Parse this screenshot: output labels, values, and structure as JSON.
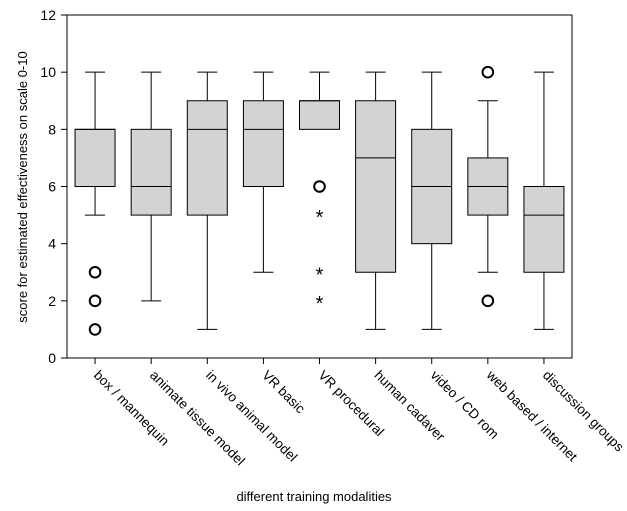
{
  "chart_data": {
    "type": "boxplot",
    "xlabel": "different training modalities",
    "ylabel": "score for estimated effectiveness on scale 0-10",
    "ylim": [
      0,
      12
    ],
    "yticks": [
      "0",
      "2",
      "4",
      "6",
      "8",
      "10",
      "12"
    ],
    "box_fill": "#d3d3d3",
    "categories": [
      {
        "label": "box / mannequin",
        "min": 5,
        "q1": 6,
        "median": 8,
        "q3": 8,
        "max": 10,
        "outliers": [
          3,
          2,
          1
        ],
        "extremes": []
      },
      {
        "label": "animate tissue model",
        "min": 2,
        "q1": 5,
        "median": 6,
        "q3": 8,
        "max": 10,
        "outliers": [],
        "extremes": []
      },
      {
        "label": "in vivo animal model",
        "min": 1,
        "q1": 5,
        "median": 8,
        "q3": 9,
        "max": 10,
        "outliers": [],
        "extremes": []
      },
      {
        "label": "VR basic",
        "min": 3,
        "q1": 6,
        "median": 8,
        "q3": 9,
        "max": 10,
        "outliers": [],
        "extremes": []
      },
      {
        "label": "VR procedural",
        "min": 8,
        "q1": 8,
        "median": 9,
        "q3": 9,
        "max": 10,
        "outliers": [
          6
        ],
        "extremes": [
          5,
          3,
          2
        ]
      },
      {
        "label": "human cadaver",
        "min": 1,
        "q1": 3,
        "median": 7,
        "q3": 9,
        "max": 10,
        "outliers": [],
        "extremes": []
      },
      {
        "label": "video / CD rom",
        "min": 1,
        "q1": 4,
        "median": 6,
        "q3": 8,
        "max": 10,
        "outliers": [],
        "extremes": []
      },
      {
        "label": "web based / internet",
        "min": 3,
        "q1": 5,
        "median": 6,
        "q3": 7,
        "max": 9,
        "outliers": [
          10,
          2
        ],
        "extremes": []
      },
      {
        "label": "discussion groups",
        "min": 1,
        "q1": 3,
        "median": 5,
        "q3": 6,
        "max": 10,
        "outliers": [],
        "extremes": []
      }
    ]
  }
}
